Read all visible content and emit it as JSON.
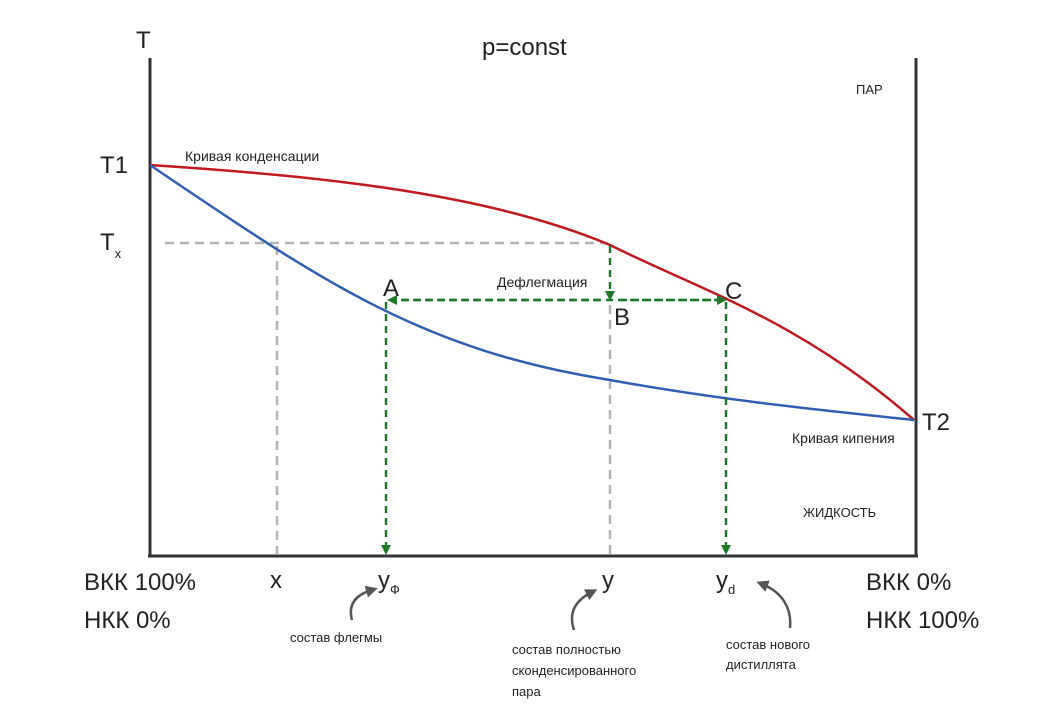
{
  "title": "p=const",
  "axis": {
    "y_label": "T",
    "left_bottom_1": "ВКК 100%",
    "left_bottom_2": "НКК 0%",
    "right_bottom_1": "ВКК 0%",
    "right_bottom_2": "НКК 100%"
  },
  "temps": {
    "t1": "T1",
    "t2": "T2",
    "tx_main": "T",
    "tx_sub": "x"
  },
  "regions": {
    "vapor": "ПАР",
    "liquid": "ЖИДКОСТЬ"
  },
  "curves": {
    "condensation_label": "Кривая конденсации",
    "boiling_label": "Кривая кипения",
    "condensation_color": "#c0191e",
    "boiling_color": "#2f5fb3"
  },
  "points": {
    "a": "A",
    "b": "B",
    "c": "C",
    "process": "Дефлегмация"
  },
  "ticks": {
    "x": "x",
    "yf_main": "y",
    "yf_sub": "Ф",
    "y": "y",
    "yd_main": "y",
    "yd_sub": "d"
  },
  "notes": {
    "reflux": "состав флегмы",
    "condensed_1": "состав полностью",
    "condensed_2": "сконденсированного",
    "condensed_3": "пара",
    "distillate_1": "состав нового",
    "distillate_2": "дистиллята"
  },
  "colors": {
    "guide": "#b3b3b3",
    "process": "#1e7a2a",
    "arrow_note": "#555555"
  }
}
